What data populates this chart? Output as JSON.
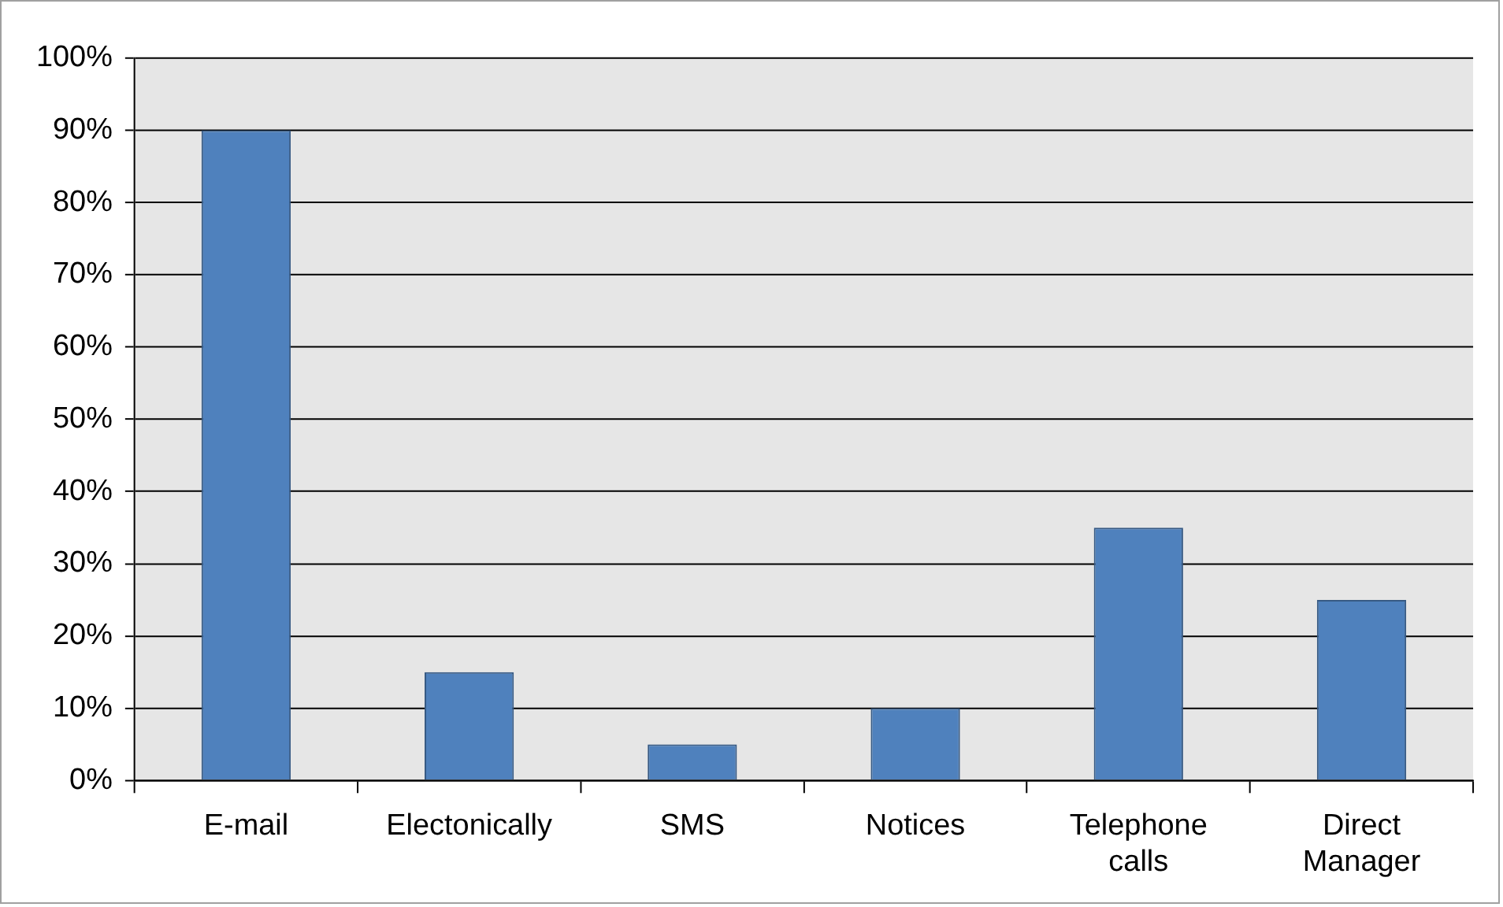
{
  "chart_data": {
    "type": "bar",
    "categories": [
      "E-mail",
      "Electonically",
      "SMS",
      "Notices",
      "Telephone calls",
      "Direct Manager"
    ],
    "values": [
      90,
      15,
      5,
      10,
      35,
      25
    ],
    "color": "#4f81bd",
    "ylim": [
      0,
      100
    ],
    "yticks": [
      {
        "value": 0,
        "label": "0%"
      },
      {
        "value": 10,
        "label": "10%"
      },
      {
        "value": 20,
        "label": "20%"
      },
      {
        "value": 30,
        "label": "30%"
      },
      {
        "value": 40,
        "label": "40%"
      },
      {
        "value": 50,
        "label": "50%"
      },
      {
        "value": 60,
        "label": "60%"
      },
      {
        "value": 70,
        "label": "70%"
      },
      {
        "value": 80,
        "label": "80%"
      },
      {
        "value": 90,
        "label": "90%"
      },
      {
        "value": 100,
        "label": "100%"
      }
    ],
    "grid": "y"
  }
}
